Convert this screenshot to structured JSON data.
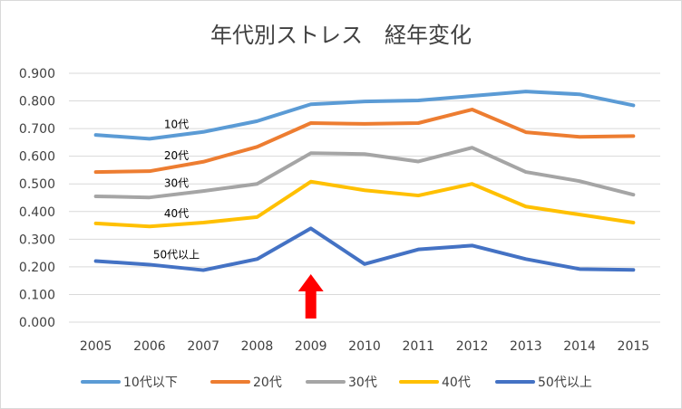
{
  "chart_data": {
    "type": "line",
    "title": "年代別ストレス　経年変化",
    "xlabel": "",
    "ylabel": "",
    "categories": [
      "2005",
      "2006",
      "2007",
      "2008",
      "2009",
      "2010",
      "2011",
      "2012",
      "2013",
      "2014",
      "2015"
    ],
    "ylim": [
      0,
      0.9
    ],
    "yticks": [
      "0.000",
      "0.100",
      "0.200",
      "0.300",
      "0.400",
      "0.500",
      "0.600",
      "0.700",
      "0.800",
      "0.900"
    ],
    "grid": true,
    "legend_position": "bottom",
    "series": [
      {
        "name": "10代以下",
        "color": "#5b9bd5",
        "inline_label": "10代",
        "values": [
          0.677,
          0.663,
          0.688,
          0.727,
          0.788,
          0.798,
          0.802,
          0.818,
          0.834,
          0.824,
          0.784
        ]
      },
      {
        "name": "20代",
        "color": "#ed7d31",
        "inline_label": "20代",
        "values": [
          0.543,
          0.546,
          0.58,
          0.634,
          0.72,
          0.717,
          0.72,
          0.769,
          0.687,
          0.67,
          0.673
        ]
      },
      {
        "name": "30代",
        "color": "#a5a5a5",
        "inline_label": "30代",
        "values": [
          0.455,
          0.451,
          0.474,
          0.5,
          0.611,
          0.608,
          0.581,
          0.631,
          0.543,
          0.51,
          0.461
        ]
      },
      {
        "name": "40代",
        "color": "#ffc000",
        "inline_label": "40代",
        "values": [
          0.357,
          0.346,
          0.36,
          0.38,
          0.508,
          0.477,
          0.458,
          0.5,
          0.418,
          0.389,
          0.36
        ]
      },
      {
        "name": "50代以上",
        "color": "#4472c4",
        "inline_label": "50代以上",
        "values": [
          0.221,
          0.208,
          0.188,
          0.228,
          0.339,
          0.21,
          0.263,
          0.277,
          0.228,
          0.192,
          0.189
        ]
      }
    ],
    "annotations": [
      {
        "type": "arrow",
        "direction": "up",
        "color": "#ff0000",
        "x": "2009"
      }
    ]
  }
}
